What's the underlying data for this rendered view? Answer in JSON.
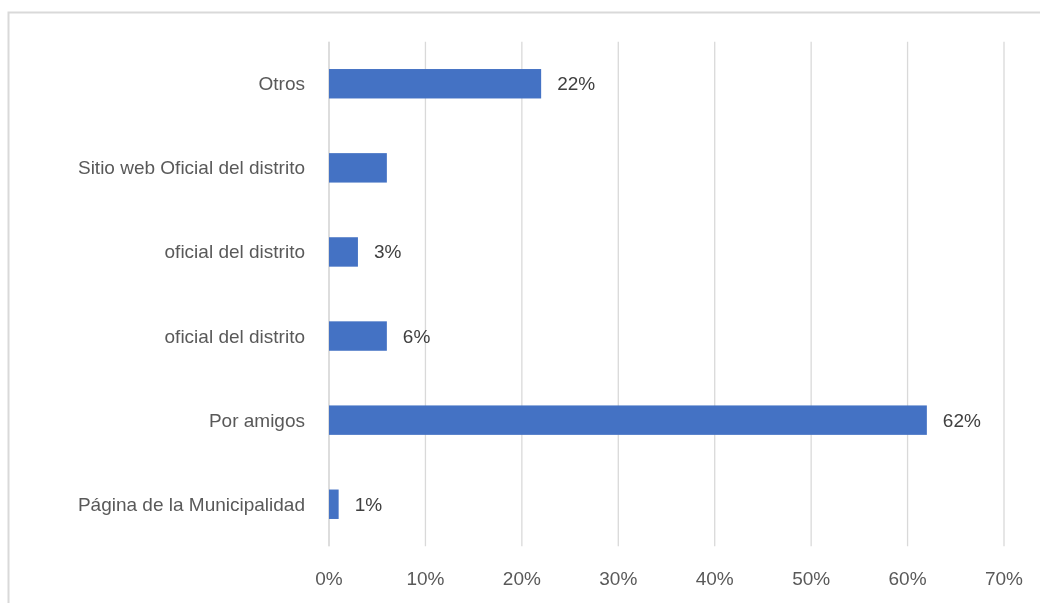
{
  "chart_data": {
    "type": "bar",
    "orientation": "horizontal",
    "categories": [
      "Otros",
      "Sitio web Oficial del distrito",
      "oficial del distrito",
      "oficial del distrito",
      "Por amigos",
      "Página de la Municipalidad"
    ],
    "values": [
      22,
      6,
      3,
      6,
      62,
      1
    ],
    "color": "#4472c4",
    "value_labels": [
      "22%",
      null,
      "3%",
      "6%",
      "62%",
      "1%"
    ],
    "xlim": [
      0,
      70
    ],
    "xticks": [
      {
        "value": 0,
        "label": "0%"
      },
      {
        "value": 10,
        "label": "10%"
      },
      {
        "value": 20,
        "label": "20%"
      },
      {
        "value": 30,
        "label": "30%"
      },
      {
        "value": 40,
        "label": "40%"
      },
      {
        "value": 50,
        "label": "50%"
      },
      {
        "value": 60,
        "label": "60%"
      },
      {
        "value": 70,
        "label": "70%"
      }
    ],
    "grid": "x"
  }
}
